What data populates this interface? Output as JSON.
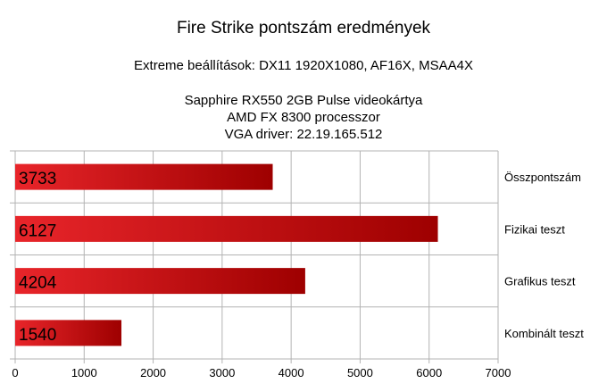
{
  "chart_data": {
    "type": "bar",
    "orientation": "horizontal",
    "title": "Fire Strike pontszám eredmények",
    "subtitle": "Extreme beállítások: DX11 1920X1080, AF16X, MSAA4X",
    "notes": [
      "Sapphire RX550 2GB Pulse videokártya",
      "AMD FX 8300 processzor",
      "VGA driver: 22.19.165.512"
    ],
    "categories": [
      "Összpontszám",
      "Fizikai teszt",
      "Grafikus teszt",
      "Kombinált teszt"
    ],
    "values": [
      3733,
      6127,
      4204,
      1540
    ],
    "xlim": [
      0,
      7000
    ],
    "xticks": [
      0,
      1000,
      2000,
      3000,
      4000,
      5000,
      6000,
      7000
    ],
    "xlabel": "",
    "ylabel": "",
    "grid": true,
    "legend": "none",
    "data_labels": "inside-start",
    "colors": {
      "bar_start": "#e8252a",
      "bar_end": "#9e0000",
      "grid": "#b3b3b3"
    }
  }
}
